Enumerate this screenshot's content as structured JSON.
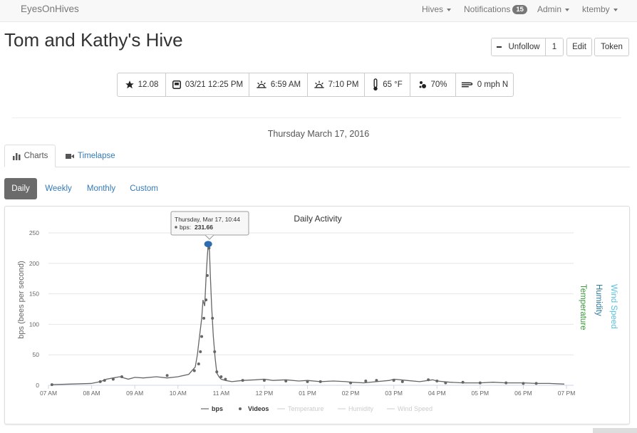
{
  "navbar": {
    "brand": "EyesOnHives",
    "hives": "Hives",
    "notifications": "Notifications",
    "notifications_count": "15",
    "admin": "Admin",
    "user": "ktemby"
  },
  "page": {
    "title": "Tom and Kathy's Hive"
  },
  "actions": {
    "unfollow": "Unfollow",
    "follow_count": "1",
    "edit": "Edit",
    "token": "Token"
  },
  "stats": {
    "rating": "12.08",
    "last_upload": "03/21 12:25 PM",
    "sunrise": "6:59 AM",
    "sunset": "7:10 PM",
    "temperature": "65 °F",
    "humidity": "70%",
    "wind": "0 mph N"
  },
  "date_heading": "Thursday March 17, 2016",
  "tabs": {
    "charts": "Charts",
    "timelapse": "Timelapse"
  },
  "ranges": {
    "daily": "Daily",
    "weekly": "Weekly",
    "monthly": "Monthly",
    "custom": "Custom",
    "active": "Daily"
  },
  "colors": {
    "bps": "#666666",
    "temperature": "#3a9a3a",
    "humidity": "#2a7a9a",
    "wind_speed": "#5bc0de",
    "marker": "#2b6db0"
  },
  "tooltip": {
    "title": "Thursday, Mar 17, 10:44",
    "series_label": "bps:",
    "value": "231.66"
  },
  "chart_data": {
    "type": "line",
    "title": "Daily Activity",
    "ylabel": "bps (bees per second)",
    "ylim": [
      0,
      250
    ],
    "y_ticks": [
      "0",
      "50",
      "100",
      "150",
      "200",
      "250"
    ],
    "x_ticks": [
      "07 AM",
      "08 AM",
      "09 AM",
      "10 AM",
      "11 AM",
      "12 PM",
      "01 PM",
      "02 PM",
      "03 PM",
      "04 PM",
      "05 PM",
      "06 PM",
      "07 PM"
    ],
    "right_axes": [
      "Temperature",
      "Humidity",
      "Wind Speed"
    ],
    "legend": [
      "bps",
      "Videos",
      "Temperature",
      "Humidity",
      "Wind Speed"
    ],
    "legend_placement": "bottom",
    "grid": true,
    "x_unit": "hours of day",
    "series": [
      {
        "name": "bps",
        "x": [
          7.05,
          7.5,
          8.0,
          8.2,
          8.35,
          8.5,
          8.65,
          8.85,
          9.0,
          9.2,
          9.5,
          9.75,
          10.0,
          10.25,
          10.4,
          10.45,
          10.5,
          10.55,
          10.58,
          10.62,
          10.65,
          10.68,
          10.7,
          10.73,
          10.75,
          10.78,
          10.82,
          10.86,
          10.9,
          10.95,
          11.0,
          11.1,
          11.25,
          11.5,
          11.8,
          12.0,
          12.2,
          12.5,
          12.8,
          13.0,
          13.3,
          13.6,
          13.9,
          14.0,
          14.3,
          14.6,
          14.9,
          15.0,
          15.3,
          15.6,
          15.9,
          16.0,
          16.3,
          16.6,
          17.0,
          17.3,
          17.6,
          18.0,
          18.3,
          18.6,
          18.95
        ],
        "y": [
          1,
          2,
          3,
          6,
          10,
          12,
          14,
          10,
          13,
          12,
          14,
          12,
          14,
          18,
          30,
          50,
          80,
          110,
          140,
          130,
          175,
          210,
          231.66,
          220,
          180,
          130,
          80,
          45,
          20,
          14,
          10,
          8,
          6,
          8,
          9,
          10,
          8,
          9,
          7,
          8,
          6,
          7,
          6,
          5,
          4,
          6,
          8,
          10,
          8,
          6,
          9,
          7,
          5,
          4,
          4,
          5,
          4,
          4,
          3,
          3,
          2
        ]
      },
      {
        "name": "Videos",
        "x": [
          7.08,
          8.2,
          8.3,
          8.5,
          8.7,
          9.75,
          10.38,
          10.48,
          10.52,
          10.55,
          10.6,
          10.65,
          10.68,
          10.7,
          10.72,
          10.8,
          10.85,
          10.9,
          11.0,
          11.1,
          11.5,
          12.0,
          12.5,
          13.0,
          13.3,
          14.0,
          14.35,
          14.6,
          15.0,
          15.2,
          15.8,
          16.0,
          16.2,
          16.6,
          17.0,
          17.6,
          18.0,
          18.3
        ],
        "y": [
          1,
          6,
          8,
          10,
          14,
          16,
          24,
          35,
          55,
          80,
          110,
          140,
          180,
          231.66,
          225,
          110,
          55,
          22,
          14,
          10,
          8,
          8,
          7,
          6,
          6,
          4,
          7,
          8,
          8,
          6,
          9,
          7,
          4,
          5,
          4,
          4,
          3,
          3
        ]
      }
    ]
  }
}
